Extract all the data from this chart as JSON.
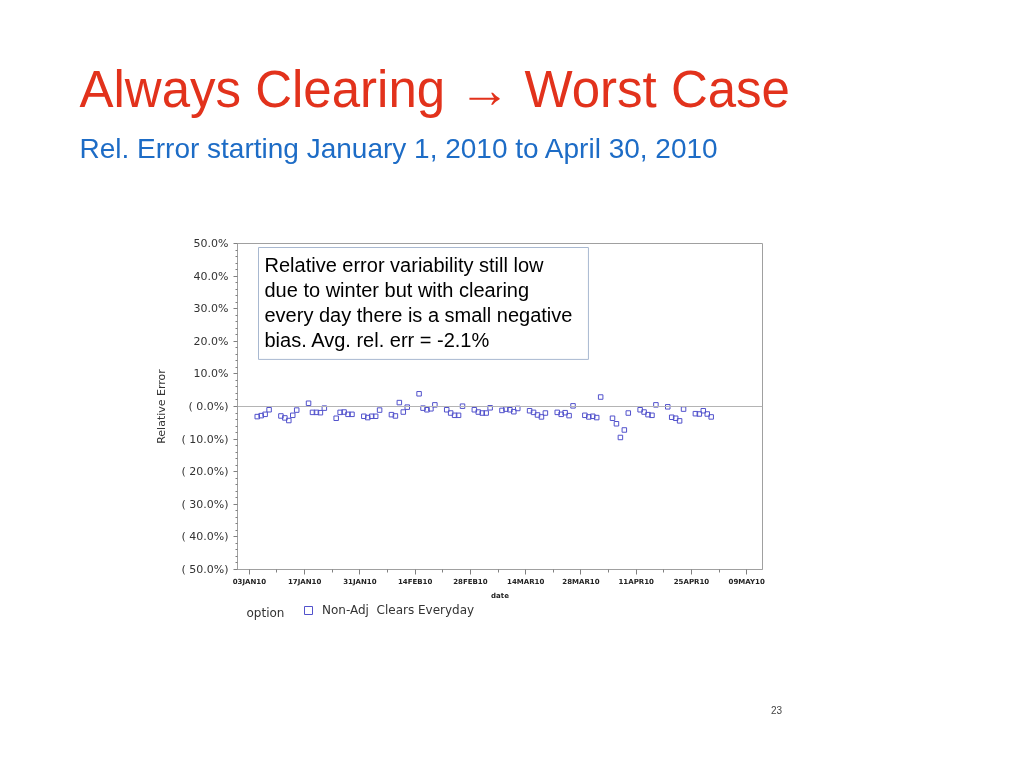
{
  "chart_data": {
    "type": "scatter",
    "title": "Always Clearing →  Worst Case",
    "subtitle": "Rel. Error starting January 1, 2010 to April 30, 2010",
    "xlabel": "date",
    "ylabel": "Relative Error",
    "legend_title": "option",
    "annotations": [
      "Relative error variability still low\ndue to winter but with clearing\nevery day there is a small negative\nbias.   Avg. rel. err = -2.1%",
      "23"
    ],
    "xlim": [
      "2009-12-31",
      "2010-05-13"
    ],
    "xticks": [
      {
        "value": "2010-01-03",
        "label": "03JAN10"
      },
      {
        "value": "2010-01-17",
        "label": "17JAN10"
      },
      {
        "value": "2010-01-31",
        "label": "31JAN10"
      },
      {
        "value": "2010-02-14",
        "label": "14FEB10"
      },
      {
        "value": "2010-02-28",
        "label": "28FEB10"
      },
      {
        "value": "2010-03-14",
        "label": "14MAR10"
      },
      {
        "value": "2010-03-28",
        "label": "28MAR10"
      },
      {
        "value": "2010-04-11",
        "label": "11APR10"
      },
      {
        "value": "2010-04-25",
        "label": "25APR10"
      },
      {
        "value": "2010-05-09",
        "label": "09MAY10"
      }
    ],
    "ylim": [
      -50,
      50
    ],
    "yticks": [
      {
        "value": 50,
        "label": "50.0%"
      },
      {
        "value": 40,
        "label": "40.0%"
      },
      {
        "value": 30,
        "label": "30.0%"
      },
      {
        "value": 20,
        "label": "20.0%"
      },
      {
        "value": 10,
        "label": "10.0%"
      },
      {
        "value": 0,
        "label": "( 0.0%)"
      },
      {
        "value": -10,
        "label": "( 10.0%)"
      },
      {
        "value": -20,
        "label": "( 20.0%)"
      },
      {
        "value": -30,
        "label": "( 30.0%)"
      },
      {
        "value": -40,
        "label": "( 40.0%)"
      },
      {
        "value": -50,
        "label": "( 50.0%)"
      }
    ],
    "ref_lines": [
      {
        "axis": "y",
        "value": 0,
        "color": "#b4b4b4"
      }
    ],
    "legend": "bottom",
    "marker": "square",
    "x": [
      "2010-01-05",
      "2010-01-06",
      "2010-01-07",
      "2010-01-08",
      "2010-01-11",
      "2010-01-12",
      "2010-01-13",
      "2010-01-14",
      "2010-01-15",
      "2010-01-18",
      "2010-01-19",
      "2010-01-20",
      "2010-01-21",
      "2010-01-22",
      "2010-01-25",
      "2010-01-26",
      "2010-01-27",
      "2010-01-28",
      "2010-01-29",
      "2010-02-01",
      "2010-02-02",
      "2010-02-03",
      "2010-02-04",
      "2010-02-05",
      "2010-02-08",
      "2010-02-09",
      "2010-02-10",
      "2010-02-11",
      "2010-02-12",
      "2010-02-15",
      "2010-02-16",
      "2010-02-17",
      "2010-02-18",
      "2010-02-19",
      "2010-02-22",
      "2010-02-23",
      "2010-02-24",
      "2010-02-25",
      "2010-02-26",
      "2010-03-01",
      "2010-03-02",
      "2010-03-03",
      "2010-03-04",
      "2010-03-05",
      "2010-03-08",
      "2010-03-09",
      "2010-03-10",
      "2010-03-11",
      "2010-03-12",
      "2010-03-15",
      "2010-03-16",
      "2010-03-17",
      "2010-03-18",
      "2010-03-19",
      "2010-03-22",
      "2010-03-23",
      "2010-03-24",
      "2010-03-25",
      "2010-03-26",
      "2010-03-29",
      "2010-03-30",
      "2010-03-31",
      "2010-04-01",
      "2010-04-02",
      "2010-04-05",
      "2010-04-06",
      "2010-04-07",
      "2010-04-08",
      "2010-04-09",
      "2010-04-12",
      "2010-04-13",
      "2010-04-14",
      "2010-04-15",
      "2010-04-16",
      "2010-04-19",
      "2010-04-20",
      "2010-04-21",
      "2010-04-22",
      "2010-04-23",
      "2010-04-26",
      "2010-04-27",
      "2010-04-28",
      "2010-04-29",
      "2010-04-30"
    ],
    "series": [
      {
        "name": "Non-Adj  Clears Everyday",
        "color": "#5252cc",
        "values": [
          -3.1,
          -2.8,
          -2.4,
          -1.0,
          -2.9,
          -3.5,
          -4.3,
          -2.7,
          -1.1,
          1.0,
          -1.8,
          -1.8,
          -1.9,
          -0.5,
          -3.6,
          -1.8,
          -1.7,
          -2.4,
          -2.4,
          -3.0,
          -3.4,
          -3.0,
          -3.0,
          -1.1,
          -2.5,
          -2.9,
          1.2,
          -1.7,
          -0.2,
          3.9,
          -0.5,
          -1.0,
          -0.7,
          0.5,
          -1.0,
          -2.0,
          -2.7,
          -2.7,
          0.1,
          -1.0,
          -1.7,
          -2.0,
          -2.0,
          -0.4,
          -1.2,
          -0.8,
          -1.0,
          -1.6,
          -0.6,
          -1.3,
          -1.8,
          -2.6,
          -3.2,
          -2.0,
          -1.8,
          -2.4,
          -1.9,
          -2.8,
          0.2,
          -2.7,
          -3.2,
          -3.0,
          -3.4,
          2.9,
          -3.6,
          -5.3,
          -9.5,
          -7.2,
          -2.0,
          -1.0,
          -1.7,
          -2.5,
          -2.7,
          0.5,
          -0.1,
          -3.3,
          -3.6,
          -4.4,
          -0.8,
          -2.2,
          -2.3,
          -1.3,
          -2.3,
          -3.2
        ]
      }
    ]
  }
}
